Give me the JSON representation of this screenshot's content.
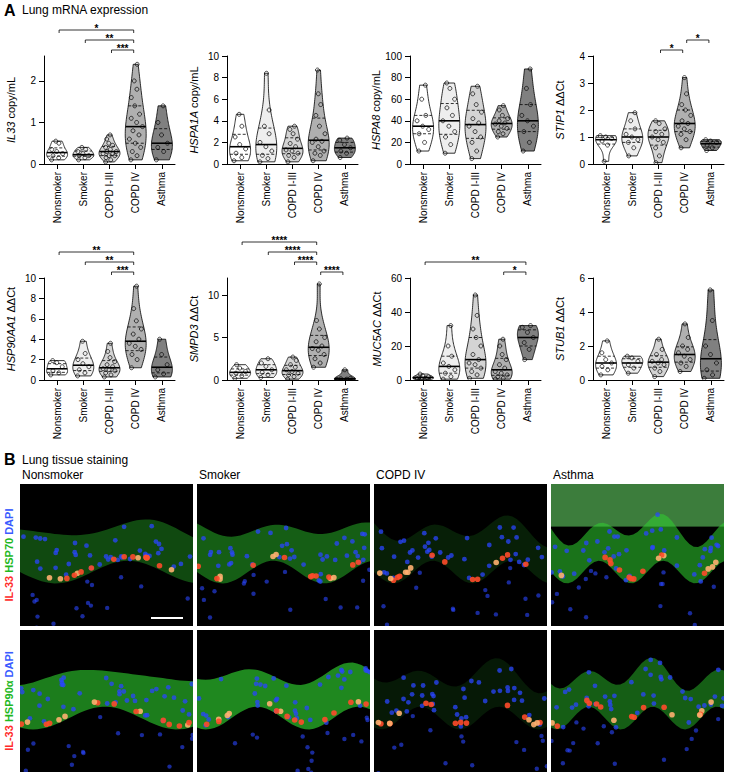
{
  "panel_a": {
    "letter": "A",
    "title": "Lung mRNA expression"
  },
  "chart_data": [
    {
      "type": "violin",
      "y_label": "IL33 copy/mL",
      "grid": false,
      "categories": [
        "Nonsmoker",
        "Smoker",
        "COPD I-III",
        "COPD IV",
        "Asthma"
      ],
      "colors": [
        "#ffffff",
        "#eeeeee",
        "#d4d4d4",
        "#b0b0b0",
        "#808080"
      ],
      "ylim": [
        0,
        2.6
      ],
      "yticks": [
        0,
        1,
        2
      ],
      "values": [
        [
          0.1,
          0.15,
          0.2,
          0.25,
          0.3,
          0.35,
          0.5,
          0.55
        ],
        [
          0.1,
          0.15,
          0.2,
          0.2,
          0.25,
          0.3,
          0.35,
          0.4
        ],
        [
          0.05,
          0.1,
          0.15,
          0.2,
          0.2,
          0.25,
          0.25,
          0.3,
          0.3,
          0.35,
          0.4,
          0.45,
          0.5,
          0.6,
          0.7
        ],
        [
          0.1,
          0.2,
          0.3,
          0.4,
          0.5,
          0.6,
          0.7,
          0.8,
          0.9,
          1.0,
          1.1,
          1.2,
          1.4,
          1.6,
          1.8,
          2.0,
          2.4
        ],
        [
          0.1,
          0.3,
          0.4,
          0.5,
          0.7,
          1.0,
          1.4
        ]
      ],
      "significance": [
        {
          "from": "COPD I-III",
          "to": "COPD IV",
          "label": "***"
        },
        {
          "from": "Smoker",
          "to": "COPD IV",
          "label": "**"
        },
        {
          "from": "Nonsmoker",
          "to": "COPD IV",
          "label": "*"
        }
      ]
    },
    {
      "type": "violin",
      "y_label": "HSPA1A copy/mL",
      "grid": false,
      "categories": [
        "Nonsmoker",
        "Smoker",
        "COPD I-III",
        "COPD IV",
        "Asthma"
      ],
      "colors": [
        "#ffffff",
        "#eeeeee",
        "#d4d4d4",
        "#b0b0b0",
        "#808080"
      ],
      "ylim": [
        0,
        10
      ],
      "yticks": [
        0,
        2,
        4,
        6,
        8,
        10
      ],
      "values": [
        [
          0.3,
          0.6,
          1.0,
          1.4,
          1.8,
          2.5,
          3.5,
          4.6
        ],
        [
          0.2,
          0.5,
          0.8,
          1.2,
          1.6,
          2.0,
          2.8,
          3.5,
          5.0,
          8.4
        ],
        [
          0.2,
          0.6,
          0.8,
          1.0,
          1.2,
          1.3,
          1.6,
          1.9,
          2.3,
          2.8,
          3.2,
          3.5
        ],
        [
          0.3,
          0.8,
          1.0,
          1.2,
          1.6,
          2.0,
          2.1,
          2.3,
          2.8,
          3.5,
          4.5,
          5.5,
          6.5,
          8.7
        ],
        [
          0.6,
          1.0,
          1.2,
          1.5,
          1.8,
          2.2,
          2.4
        ]
      ],
      "significance": []
    },
    {
      "type": "violin",
      "y_label": "HSPA8 copy/mL",
      "grid": false,
      "categories": [
        "Nonsmoker",
        "Smoker",
        "COPD I-III",
        "COPD IV",
        "Asthma"
      ],
      "colors": [
        "#ffffff",
        "#eeeeee",
        "#d4d4d4",
        "#b0b0b0",
        "#808080"
      ],
      "ylim": [
        0,
        100
      ],
      "yticks": [
        0,
        20,
        40,
        60,
        80,
        100
      ],
      "values": [
        [
          12,
          20,
          28,
          32,
          35,
          40,
          45,
          60,
          73
        ],
        [
          10,
          18,
          25,
          30,
          35,
          40,
          45,
          52,
          60,
          70,
          75
        ],
        [
          5,
          12,
          20,
          25,
          30,
          35,
          38,
          42,
          48,
          55,
          65,
          72
        ],
        [
          25,
          28,
          30,
          33,
          35,
          37,
          38,
          40,
          42,
          45,
          50,
          54
        ],
        [
          12,
          20,
          30,
          35,
          40,
          45,
          55,
          70,
          88
        ]
      ],
      "significance": []
    },
    {
      "type": "violin",
      "y_label": "STIP1 ΔΔCt",
      "grid": false,
      "categories": [
        "Nonsmoker",
        "Smoker",
        "COPD I-III",
        "COPD IV",
        "Asthma"
      ],
      "colors": [
        "#ffffff",
        "#eeeeee",
        "#d4d4d4",
        "#b0b0b0",
        "#808080"
      ],
      "ylim": [
        0,
        4
      ],
      "yticks": [
        0,
        1,
        2,
        3,
        4
      ],
      "values": [
        [
          0.1,
          0.7,
          0.85,
          0.95,
          1.0,
          1.05
        ],
        [
          0.3,
          0.6,
          0.8,
          0.9,
          1.0,
          1.1,
          1.3,
          1.6,
          1.9
        ],
        [
          0.05,
          0.3,
          0.6,
          0.8,
          0.9,
          1.0,
          1.1,
          1.2,
          1.3,
          1.5,
          1.6
        ],
        [
          0.6,
          0.9,
          1.1,
          1.2,
          1.3,
          1.4,
          1.5,
          1.6,
          1.8,
          2.0,
          2.2,
          2.6,
          3.2
        ],
        [
          0.5,
          0.6,
          0.7,
          0.8,
          0.85,
          0.9
        ]
      ],
      "significance": [
        {
          "from": "COPD I-III",
          "to": "COPD IV",
          "label": "*"
        },
        {
          "from": "COPD IV",
          "to": "Asthma",
          "label": "*"
        }
      ]
    },
    {
      "type": "violin",
      "y_label": "HSP90AA1 ΔΔCt",
      "grid": false,
      "categories": [
        "Nonsmoker",
        "Smoker",
        "COPD I-III",
        "COPD IV",
        "Asthma"
      ],
      "colors": [
        "#ffffff",
        "#eeeeee",
        "#d4d4d4",
        "#b0b0b0",
        "#808080"
      ],
      "ylim": [
        0,
        10
      ],
      "yticks": [
        0,
        2,
        4,
        6,
        8,
        10
      ],
      "values": [
        [
          0.5,
          0.7,
          0.9,
          1.3,
          1.7,
          1.9
        ],
        [
          0.4,
          0.7,
          1.0,
          1.3,
          1.6,
          2.0,
          2.6,
          3.8
        ],
        [
          0.3,
          0.5,
          0.7,
          0.9,
          1.0,
          1.1,
          1.3,
          1.5,
          1.8,
          2.2,
          2.8,
          3.6
        ],
        [
          1.2,
          2.0,
          2.5,
          3.0,
          3.3,
          3.6,
          4.0,
          4.5,
          5.0,
          5.8,
          7.0,
          9.2
        ],
        [
          0.3,
          0.6,
          1.0,
          1.5,
          2.5,
          4.0
        ]
      ],
      "significance": [
        {
          "from": "COPD I-III",
          "to": "COPD IV",
          "label": "***"
        },
        {
          "from": "Smoker",
          "to": "COPD IV",
          "label": "**"
        },
        {
          "from": "Nonsmoker",
          "to": "COPD IV",
          "label": "**"
        }
      ]
    },
    {
      "type": "violin",
      "y_label": "SMPD3 ΔΔCt",
      "grid": false,
      "categories": [
        "Nonsmoker",
        "Smoker",
        "COPD I-III",
        "COPD IV",
        "Asthma"
      ],
      "colors": [
        "#ffffff",
        "#eeeeee",
        "#d4d4d4",
        "#b0b0b0",
        "#808080"
      ],
      "ylim": [
        0,
        12
      ],
      "yticks": [
        0,
        5,
        10
      ],
      "values": [
        [
          0.2,
          0.5,
          0.8,
          1.0,
          1.4,
          1.8
        ],
        [
          0.3,
          0.6,
          0.9,
          1.2,
          1.6,
          2.0,
          2.5
        ],
        [
          0.1,
          0.4,
          0.6,
          0.8,
          1.0,
          1.2,
          1.5,
          1.8,
          2.3,
          2.7
        ],
        [
          1.5,
          2.0,
          2.5,
          3.0,
          3.5,
          3.7,
          4.0,
          4.5,
          5.0,
          6.0,
          7.0,
          11.3
        ],
        [
          0.05,
          0.1,
          0.15,
          0.2,
          1.2
        ]
      ],
      "significance": [
        {
          "from": "COPD IV",
          "to": "Asthma",
          "label": "****"
        },
        {
          "from": "COPD I-III",
          "to": "COPD IV",
          "label": "****"
        },
        {
          "from": "Smoker",
          "to": "COPD IV",
          "label": "****"
        },
        {
          "from": "Nonsmoker",
          "to": "COPD IV",
          "label": "****"
        }
      ]
    },
    {
      "type": "violin",
      "y_label": "MUC5AC ΔΔCt",
      "grid": false,
      "categories": [
        "Nonsmoker",
        "Smoker",
        "COPD I-III",
        "COPD IV",
        "Asthma"
      ],
      "colors": [
        "#ffffff",
        "#eeeeee",
        "#d4d4d4",
        "#b0b0b0",
        "#808080"
      ],
      "ylim": [
        0,
        60
      ],
      "yticks": [
        0,
        20,
        40,
        60
      ],
      "values": [
        [
          0.3,
          0.8,
          1.2,
          1.8,
          2.5,
          3.5
        ],
        [
          0.5,
          2,
          4,
          6,
          8,
          10,
          14,
          20,
          32
        ],
        [
          1,
          3,
          5,
          7,
          9,
          10,
          12,
          15,
          20,
          25,
          30,
          38,
          50
        ],
        [
          0.5,
          1,
          2,
          3,
          4,
          5,
          7,
          9,
          12,
          15,
          20,
          24
        ],
        [
          12,
          18,
          22,
          25,
          28,
          31,
          32
        ]
      ],
      "significance": [
        {
          "from": "COPD IV",
          "to": "Asthma",
          "label": "*"
        },
        {
          "from": "Nonsmoker",
          "to": "Asthma",
          "label": "**"
        }
      ]
    },
    {
      "type": "violin",
      "y_label": "STUB1 ΔΔCt",
      "grid": false,
      "categories": [
        "Nonsmoker",
        "Smoker",
        "COPD I-III",
        "COPD IV",
        "Asthma"
      ],
      "colors": [
        "#ffffff",
        "#eeeeee",
        "#d4d4d4",
        "#b0b0b0",
        "#808080"
      ],
      "ylim": [
        0,
        6
      ],
      "yticks": [
        0,
        2,
        4,
        6
      ],
      "values": [
        [
          0.3,
          0.6,
          0.8,
          1.0,
          1.2,
          1.6,
          2.3
        ],
        [
          0.4,
          0.7,
          0.9,
          1.1,
          1.3,
          1.4
        ],
        [
          0.2,
          0.5,
          0.7,
          0.9,
          1.0,
          1.1,
          1.2,
          1.5,
          1.8,
          2.4
        ],
        [
          0.5,
          0.8,
          1.0,
          1.2,
          1.4,
          1.6,
          1.8,
          2.0,
          2.5,
          3.3
        ],
        [
          0.1,
          0.3,
          0.6,
          1.0,
          1.5,
          2.0,
          3.5,
          5.3
        ]
      ],
      "significance": []
    }
  ],
  "panel_b": {
    "letter": "B",
    "title": "Lung tissue staining",
    "columns": [
      "Nonsmoker",
      "Smoker",
      "COPD IV",
      "Asthma"
    ],
    "rows": [
      {
        "stains": [
          {
            "text": "IL-33",
            "color": "#ff2a2a"
          },
          {
            "text": "HSP70",
            "color": "#1fb81f"
          },
          {
            "text": "DAPI",
            "color": "#3a5bff"
          }
        ]
      },
      {
        "stains": [
          {
            "text": "IL-33",
            "color": "#ff2a2a"
          },
          {
            "text": "HSP90α",
            "color": "#1fb81f"
          },
          {
            "text": "DAPI",
            "color": "#3a5bff"
          }
        ]
      }
    ]
  }
}
